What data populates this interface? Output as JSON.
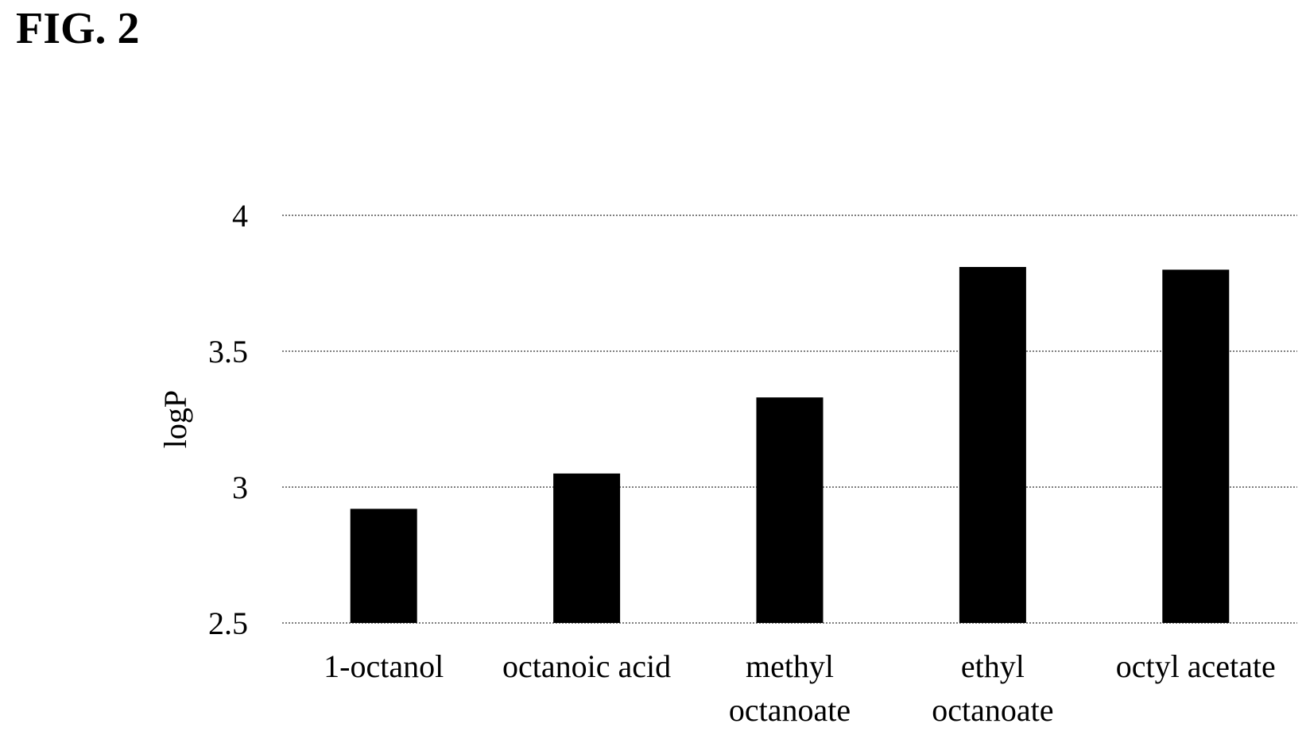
{
  "figure_label": "FIG. 2",
  "chart_data": {
    "type": "bar",
    "title": "",
    "xlabel": "",
    "ylabel": "logP",
    "ylim": [
      2.5,
      4
    ],
    "yticks": [
      2.5,
      3,
      3.5,
      4
    ],
    "ytick_labels": [
      "2.5",
      "3",
      "3.5",
      "4"
    ],
    "grid": true,
    "categories": [
      [
        "1-octanol"
      ],
      [
        "octanoic acid"
      ],
      [
        "methyl",
        "octanoate"
      ],
      [
        "ethyl",
        "octanoate"
      ],
      [
        "octyl acetate"
      ]
    ],
    "values": [
      2.92,
      3.05,
      3.33,
      3.81,
      3.8
    ],
    "bar_color": "#000000"
  }
}
